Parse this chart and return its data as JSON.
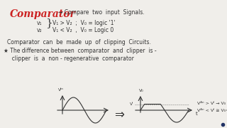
{
  "bg_color": "#f0eeea",
  "title": "Comparator",
  "title_color": "#cc2222",
  "text_color": "#333333",
  "line_arrow": "→ Compare  two  input  Signals.",
  "v1_label": "v₁",
  "v2_label": "v₂",
  "cond1": "V₁ > V₂  ;  V₀ = logic '1'",
  "cond2": "V₁ < V₂  ,  V₀ = Logic 0",
  "line_clip": "Comparator  can  be  made  up  of  clipping  Circuits.",
  "line_diff": "★ The difference between  comparator  and  clipper  is -",
  "line_clipper": "  clipper  is  a  non - regenerative  comparator",
  "vin_label": "Vᴵⁿ",
  "vo_label": "V₀",
  "vr_label": "Vᴵ",
  "note1": "Vᴬⁿ > Vᴵ → V₀ off",
  "note2": "Vᴬⁿ < Vᴵ ≅ V₀=V₂",
  "dot_color": "#223366"
}
